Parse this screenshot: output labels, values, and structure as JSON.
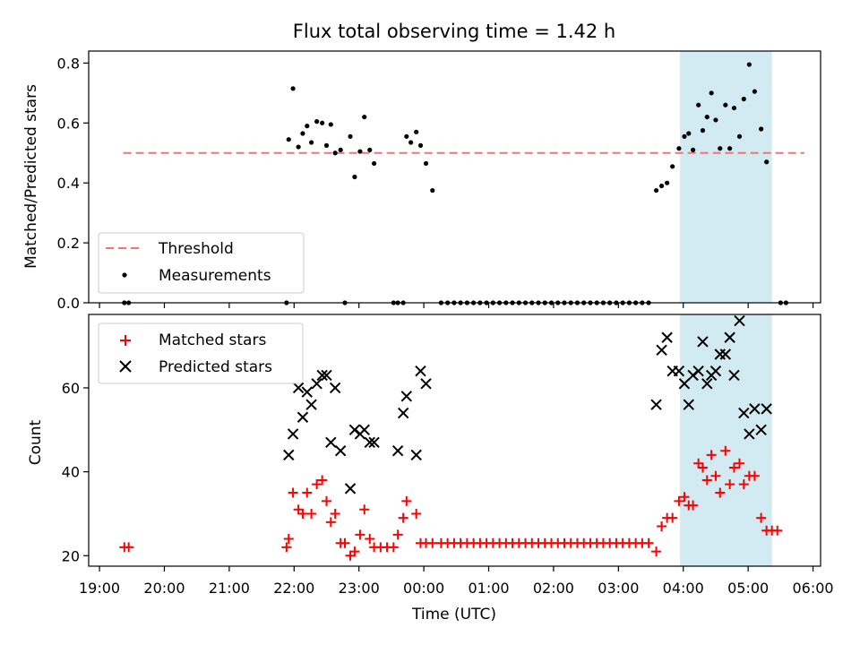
{
  "chart_data": [
    {
      "type": "scatter",
      "title": "Flux total observing time = 1.42 h",
      "ylabel": "Matched/Predicted stars",
      "xlabel": "",
      "ylim": [
        0,
        0.84
      ],
      "yticks": [
        "0.0",
        "0.2",
        "0.4",
        "0.6",
        "0.8"
      ],
      "ytick_values": [
        0,
        0.2,
        0.4,
        0.6,
        0.8
      ],
      "legend_position": "lower-left",
      "threshold": {
        "name": "Threshold",
        "value": 0.5,
        "x_start": "19:22",
        "x_end": "05:52",
        "color": "#f47373"
      },
      "shaded_interval": {
        "start": "03:57",
        "end": "05:22",
        "color": "#add8e6"
      },
      "series": [
        {
          "name": "Measurements",
          "color": "#000000",
          "points": [
            [
              "19:23",
              0
            ],
            [
              "19:27",
              0
            ],
            [
              "21:53",
              0
            ],
            [
              "21:55",
              0.545
            ],
            [
              "21:59",
              0.715
            ],
            [
              "22:04",
              0.52
            ],
            [
              "22:08",
              0.565
            ],
            [
              "22:12",
              0.59
            ],
            [
              "22:16",
              0.535
            ],
            [
              "22:21",
              0.605
            ],
            [
              "22:26",
              0.6
            ],
            [
              "22:30",
              0.525
            ],
            [
              "22:34",
              0.595
            ],
            [
              "22:38",
              0.5
            ],
            [
              "22:43",
              0.51
            ],
            [
              "22:47",
              0
            ],
            [
              "22:52",
              0.555
            ],
            [
              "22:56",
              0.42
            ],
            [
              "23:01",
              0.505
            ],
            [
              "23:05",
              0.62
            ],
            [
              "23:10",
              0.51
            ],
            [
              "23:14",
              0.465
            ],
            [
              "23:32",
              0
            ],
            [
              "23:36",
              0
            ],
            [
              "23:41",
              0
            ],
            [
              "23:44",
              0.555
            ],
            [
              "23:48",
              0.535
            ],
            [
              "23:53",
              0.57
            ],
            [
              "23:57",
              0.525
            ],
            [
              "00:02",
              0.465
            ],
            [
              "00:08",
              0.375
            ],
            [
              "00:16",
              0
            ],
            [
              "00:22",
              0
            ],
            [
              "00:28",
              0
            ],
            [
              "00:34",
              0
            ],
            [
              "00:40",
              0
            ],
            [
              "00:46",
              0
            ],
            [
              "00:52",
              0
            ],
            [
              "00:58",
              0
            ],
            [
              "01:04",
              0
            ],
            [
              "01:10",
              0
            ],
            [
              "01:16",
              0
            ],
            [
              "01:22",
              0
            ],
            [
              "01:28",
              0
            ],
            [
              "01:34",
              0
            ],
            [
              "01:40",
              0
            ],
            [
              "01:46",
              0
            ],
            [
              "01:52",
              0
            ],
            [
              "01:58",
              0
            ],
            [
              "02:04",
              0
            ],
            [
              "02:10",
              0
            ],
            [
              "02:16",
              0
            ],
            [
              "02:22",
              0
            ],
            [
              "02:28",
              0
            ],
            [
              "02:34",
              0
            ],
            [
              "02:40",
              0
            ],
            [
              "02:46",
              0
            ],
            [
              "02:52",
              0
            ],
            [
              "02:58",
              0
            ],
            [
              "03:04",
              0
            ],
            [
              "03:10",
              0
            ],
            [
              "03:16",
              0
            ],
            [
              "03:22",
              0
            ],
            [
              "03:28",
              0
            ],
            [
              "03:35",
              0.375
            ],
            [
              "03:40",
              0.39
            ],
            [
              "03:45",
              0.4
            ],
            [
              "03:50",
              0.455
            ],
            [
              "03:56",
              0.515
            ],
            [
              "04:01",
              0.555
            ],
            [
              "04:05",
              0.565
            ],
            [
              "04:09",
              0.51
            ],
            [
              "04:14",
              0.66
            ],
            [
              "04:18",
              0.575
            ],
            [
              "04:22",
              0.62
            ],
            [
              "04:26",
              0.7
            ],
            [
              "04:30",
              0.61
            ],
            [
              "04:34",
              0.515
            ],
            [
              "04:39",
              0.66
            ],
            [
              "04:43",
              0.515
            ],
            [
              "04:47",
              0.65
            ],
            [
              "04:52",
              0.555
            ],
            [
              "04:56",
              0.68
            ],
            [
              "05:01",
              0.795
            ],
            [
              "05:06",
              0.705
            ],
            [
              "05:12",
              0.58
            ],
            [
              "05:17",
              0.47
            ],
            [
              "05:30",
              0
            ],
            [
              "05:35",
              0
            ]
          ]
        }
      ]
    },
    {
      "type": "scatter",
      "title": "",
      "ylabel": "Count",
      "xlabel": "Time (UTC)",
      "ylim": [
        17.5,
        77.5
      ],
      "yticks": [
        "20",
        "40",
        "60"
      ],
      "ytick_values": [
        20,
        40,
        60
      ],
      "xlim": [
        "18:50",
        "06:07"
      ],
      "xticks": [
        "19:00",
        "20:00",
        "21:00",
        "22:00",
        "23:00",
        "00:00",
        "01:00",
        "02:00",
        "03:00",
        "04:00",
        "05:00",
        "06:00"
      ],
      "legend_position": "upper-left",
      "shaded_interval": {
        "start": "03:57",
        "end": "05:22",
        "color": "#add8e6"
      },
      "series": [
        {
          "name": "Matched stars",
          "marker": "plus",
          "color": "#ff0000",
          "points": [
            [
              "19:23",
              22
            ],
            [
              "19:27",
              22
            ],
            [
              "21:53",
              22
            ],
            [
              "21:55",
              24
            ],
            [
              "21:59",
              35
            ],
            [
              "22:04",
              31
            ],
            [
              "22:08",
              30
            ],
            [
              "22:12",
              35
            ],
            [
              "22:16",
              30
            ],
            [
              "22:21",
              37
            ],
            [
              "22:26",
              38
            ],
            [
              "22:30",
              33
            ],
            [
              "22:34",
              28
            ],
            [
              "22:38",
              30
            ],
            [
              "22:43",
              23
            ],
            [
              "22:47",
              23
            ],
            [
              "22:52",
              20
            ],
            [
              "22:56",
              21
            ],
            [
              "23:01",
              25
            ],
            [
              "23:05",
              31
            ],
            [
              "23:10",
              24
            ],
            [
              "23:14",
              22
            ],
            [
              "23:20",
              22
            ],
            [
              "23:26",
              22
            ],
            [
              "23:32",
              22
            ],
            [
              "23:36",
              25
            ],
            [
              "23:41",
              29
            ],
            [
              "23:44",
              33
            ],
            [
              "23:53",
              30
            ],
            [
              "23:57",
              23
            ],
            [
              "00:02",
              23
            ],
            [
              "00:08",
              23
            ],
            [
              "00:16",
              23
            ],
            [
              "00:22",
              23
            ],
            [
              "00:28",
              23
            ],
            [
              "00:34",
              23
            ],
            [
              "00:40",
              23
            ],
            [
              "00:46",
              23
            ],
            [
              "00:52",
              23
            ],
            [
              "00:58",
              23
            ],
            [
              "01:04",
              23
            ],
            [
              "01:10",
              23
            ],
            [
              "01:16",
              23
            ],
            [
              "01:22",
              23
            ],
            [
              "01:28",
              23
            ],
            [
              "01:34",
              23
            ],
            [
              "01:40",
              23
            ],
            [
              "01:46",
              23
            ],
            [
              "01:52",
              23
            ],
            [
              "01:58",
              23
            ],
            [
              "02:04",
              23
            ],
            [
              "02:10",
              23
            ],
            [
              "02:16",
              23
            ],
            [
              "02:22",
              23
            ],
            [
              "02:28",
              23
            ],
            [
              "02:34",
              23
            ],
            [
              "02:40",
              23
            ],
            [
              "02:46",
              23
            ],
            [
              "02:52",
              23
            ],
            [
              "02:58",
              23
            ],
            [
              "03:04",
              23
            ],
            [
              "03:10",
              23
            ],
            [
              "03:16",
              23
            ],
            [
              "03:22",
              23
            ],
            [
              "03:28",
              23
            ],
            [
              "03:35",
              21
            ],
            [
              "03:40",
              27
            ],
            [
              "03:45",
              29
            ],
            [
              "03:50",
              29
            ],
            [
              "03:56",
              33
            ],
            [
              "04:01",
              34
            ],
            [
              "04:05",
              32
            ],
            [
              "04:09",
              32
            ],
            [
              "04:14",
              42
            ],
            [
              "04:18",
              41
            ],
            [
              "04:22",
              38
            ],
            [
              "04:26",
              44
            ],
            [
              "04:30",
              39
            ],
            [
              "04:34",
              35
            ],
            [
              "04:39",
              45
            ],
            [
              "04:43",
              37
            ],
            [
              "04:47",
              41
            ],
            [
              "04:52",
              42
            ],
            [
              "04:56",
              37
            ],
            [
              "05:01",
              39
            ],
            [
              "05:06",
              39
            ],
            [
              "05:12",
              29
            ],
            [
              "05:17",
              26
            ],
            [
              "05:22",
              26
            ],
            [
              "05:27",
              26
            ]
          ]
        },
        {
          "name": "Predicted stars",
          "marker": "x",
          "color": "#000000",
          "points": [
            [
              "21:55",
              44
            ],
            [
              "21:59",
              49
            ],
            [
              "22:04",
              60
            ],
            [
              "22:08",
              53
            ],
            [
              "22:12",
              59
            ],
            [
              "22:16",
              56
            ],
            [
              "22:21",
              61
            ],
            [
              "22:26",
              63
            ],
            [
              "22:30",
              63
            ],
            [
              "22:34",
              47
            ],
            [
              "22:38",
              60
            ],
            [
              "22:43",
              45
            ],
            [
              "22:52",
              36
            ],
            [
              "22:56",
              50
            ],
            [
              "23:01",
              49
            ],
            [
              "23:05",
              50
            ],
            [
              "23:10",
              47
            ],
            [
              "23:14",
              47
            ],
            [
              "23:36",
              45
            ],
            [
              "23:41",
              54
            ],
            [
              "23:44",
              58
            ],
            [
              "23:53",
              44
            ],
            [
              "23:57",
              64
            ],
            [
              "00:02",
              61
            ],
            [
              "03:35",
              56
            ],
            [
              "03:40",
              69
            ],
            [
              "03:45",
              72
            ],
            [
              "03:50",
              64
            ],
            [
              "03:56",
              64
            ],
            [
              "04:01",
              61
            ],
            [
              "04:05",
              56
            ],
            [
              "04:09",
              63
            ],
            [
              "04:14",
              64
            ],
            [
              "04:18",
              71
            ],
            [
              "04:22",
              61
            ],
            [
              "04:26",
              63
            ],
            [
              "04:30",
              64
            ],
            [
              "04:34",
              68
            ],
            [
              "04:39",
              68
            ],
            [
              "04:43",
              72
            ],
            [
              "04:47",
              63
            ],
            [
              "04:52",
              76
            ],
            [
              "04:56",
              54
            ],
            [
              "05:01",
              49
            ],
            [
              "05:06",
              55
            ],
            [
              "05:12",
              50
            ],
            [
              "05:17",
              55
            ]
          ]
        }
      ]
    }
  ]
}
